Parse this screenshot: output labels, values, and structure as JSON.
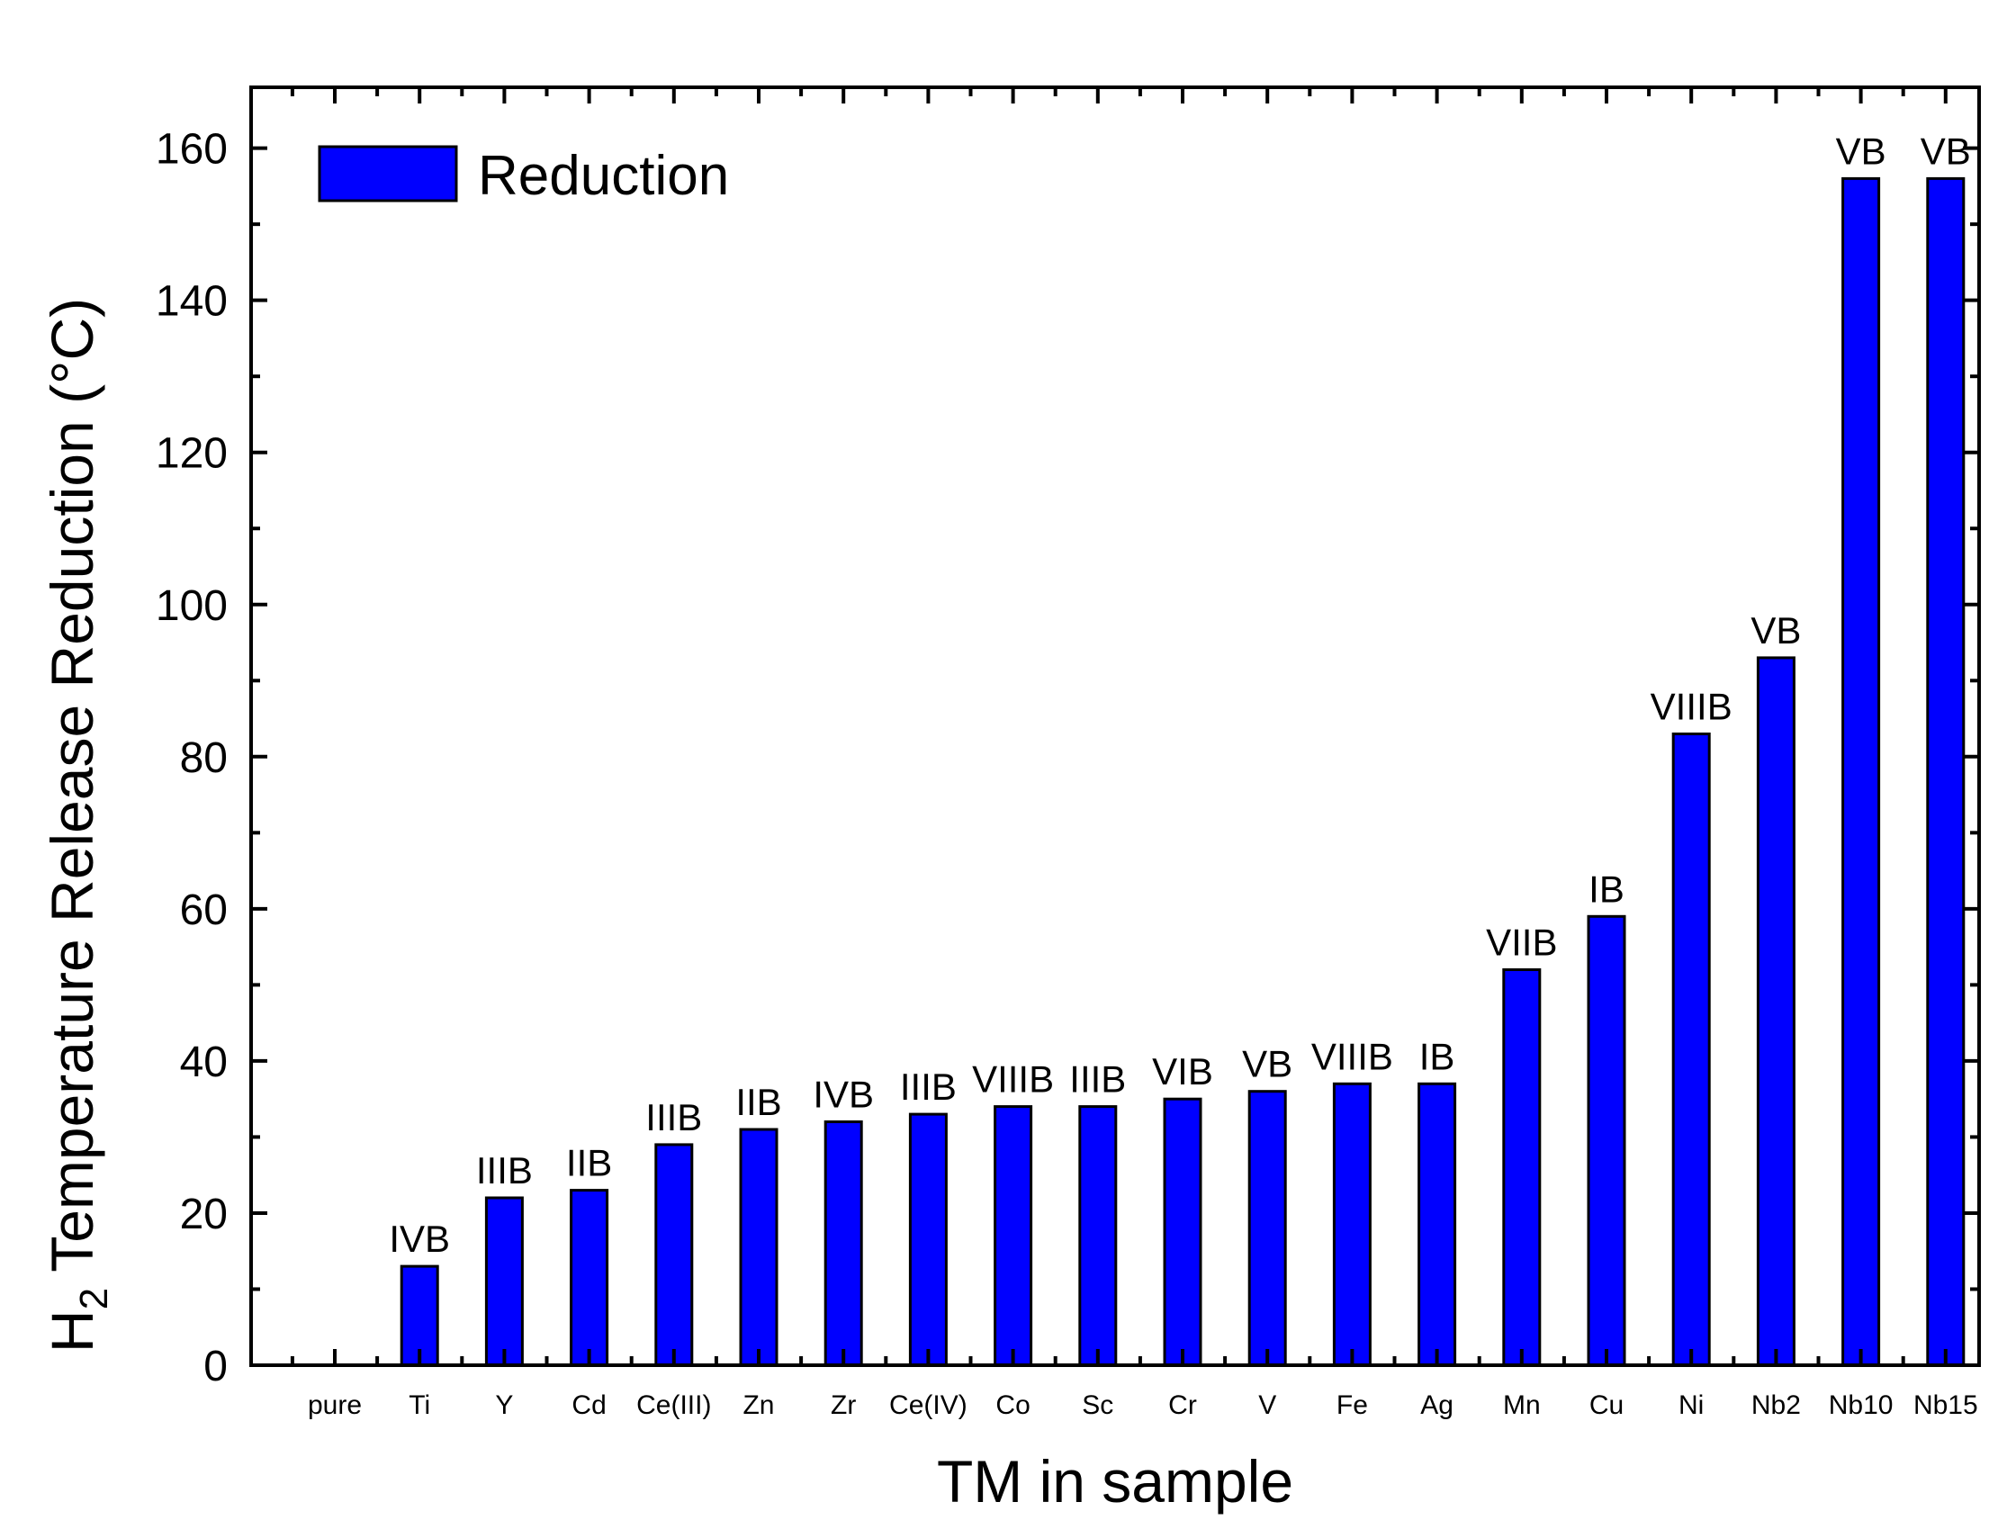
{
  "chart_data": {
    "type": "bar",
    "title": "",
    "xlabel": "TM in sample",
    "ylabel": {
      "prefix": "H",
      "subscript": "2",
      "rest": " Temperature Release Reduction (°C)"
    },
    "ylim": [
      0,
      168
    ],
    "yticks": [
      0,
      20,
      40,
      60,
      80,
      100,
      120,
      140,
      160
    ],
    "grid": false,
    "legend": {
      "position": "top-left",
      "entries": [
        "Reduction"
      ]
    },
    "bar_color": "#0000ff",
    "categories": [
      "pure",
      "Ti",
      "Y",
      "Cd",
      "Ce(III)",
      "Zn",
      "Zr",
      "Ce(IV)",
      "Co",
      "Sc",
      "Cr",
      "V",
      "Fe",
      "Ag",
      "Mn",
      "Cu",
      "Ni",
      "Nb2",
      "Nb10",
      "Nb15"
    ],
    "series": [
      {
        "name": "Reduction",
        "values": [
          0,
          13,
          22,
          23,
          29,
          31,
          32,
          33,
          34,
          34,
          35,
          36,
          37,
          37,
          52,
          59,
          83,
          93,
          156,
          156
        ]
      }
    ],
    "bar_labels": [
      "",
      "IVB",
      "IIIB",
      "IIB",
      "IIIB",
      "IIB",
      "IVB",
      "IIIB",
      "VIIIB",
      "IIIB",
      "VIB",
      "VB",
      "VIIIB",
      "IB",
      "VIIB",
      "IB",
      "VIIIB",
      "VB",
      "VB",
      "VB"
    ]
  }
}
